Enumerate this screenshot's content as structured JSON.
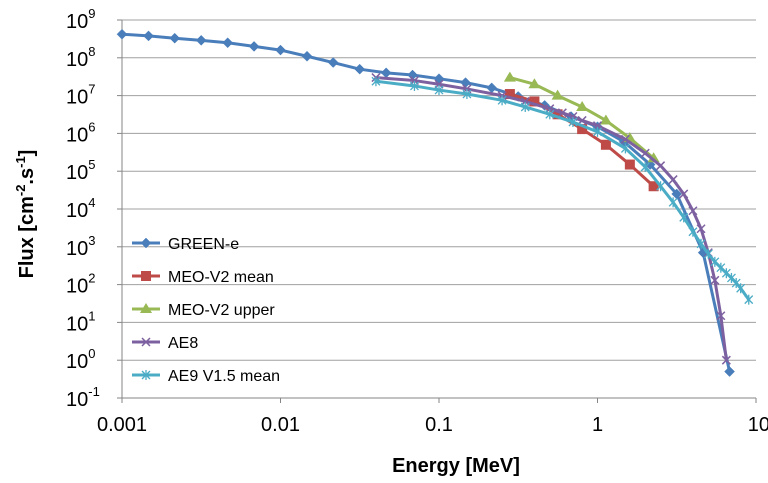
{
  "chart_data": {
    "type": "line",
    "xscale": "log",
    "yscale": "log",
    "xlim": [
      0.001,
      10
    ],
    "ylim": [
      0.1,
      1000000000
    ],
    "xlabel": "Energy [MeV]",
    "ylabel": {
      "base": "Flux [cm",
      "e1": "-2",
      "mid": ".s",
      "e2": "-1",
      "end": "]"
    },
    "grid": "horizontal",
    "legend": "lower-left",
    "x_ticks": [
      {
        "value": 0.001,
        "label": "0.001"
      },
      {
        "value": 0.01,
        "label": "0.01"
      },
      {
        "value": 0.1,
        "label": "0.1"
      },
      {
        "value": 1,
        "label": "1"
      },
      {
        "value": 10,
        "label": "10"
      }
    ],
    "y_ticks": [
      {
        "value": 1000000000,
        "base": "10",
        "exp": "9"
      },
      {
        "value": 100000000,
        "base": "10",
        "exp": "8"
      },
      {
        "value": 10000000,
        "base": "10",
        "exp": "7"
      },
      {
        "value": 1000000,
        "base": "10",
        "exp": "6"
      },
      {
        "value": 100000,
        "base": "10",
        "exp": "5"
      },
      {
        "value": 10000,
        "base": "10",
        "exp": "4"
      },
      {
        "value": 1000,
        "base": "10",
        "exp": "3"
      },
      {
        "value": 100,
        "base": "10",
        "exp": "2"
      },
      {
        "value": 10,
        "base": "10",
        "exp": "1"
      },
      {
        "value": 1,
        "base": "10",
        "exp": "0"
      },
      {
        "value": 0.1,
        "base": "10",
        "exp": "-1"
      }
    ],
    "series": [
      {
        "name": "GREEN-e",
        "color": "#4a7ebb",
        "marker": "diamond",
        "x": [
          0.001,
          0.00147,
          0.00215,
          0.00316,
          0.00464,
          0.00681,
          0.01,
          0.0147,
          0.0215,
          0.0316,
          0.0464,
          0.0681,
          0.1,
          0.147,
          0.215,
          0.316,
          0.464,
          0.681,
          1.0,
          1.47,
          2.15,
          3.16,
          4.64,
          6.81
        ],
        "y": [
          420000000,
          380000000,
          330000000,
          290000000,
          250000000,
          200000000,
          160000000,
          110000000,
          75000000,
          50000000,
          40000000,
          35000000,
          28000000,
          22000000,
          16000000,
          9500000,
          5500000,
          2800000,
          1500000,
          600000,
          150000,
          25000,
          700,
          0.5
        ]
      },
      {
        "name": "MEO-V2 mean",
        "color": "#be4b48",
        "marker": "square",
        "x": [
          0.28,
          0.4,
          0.56,
          0.8,
          1.13,
          1.6,
          2.26
        ],
        "y": [
          11000000,
          7000000,
          3200000,
          1300000,
          500000,
          150000,
          40000
        ]
      },
      {
        "name": "MEO-V2 upper",
        "color": "#98b954",
        "marker": "triangle",
        "x": [
          0.28,
          0.4,
          0.56,
          0.8,
          1.13,
          1.6,
          2.26
        ],
        "y": [
          30000000,
          20000000,
          10000000,
          5000000,
          2200000,
          750000,
          220000
        ]
      },
      {
        "name": "AE8",
        "color": "#7d60a0",
        "marker": "x",
        "x": [
          0.04,
          0.07,
          0.1,
          0.15,
          0.25,
          0.35,
          0.5,
          0.6,
          0.7,
          0.8,
          1.0,
          1.5,
          2.0,
          2.5,
          3.0,
          3.5,
          4.0,
          4.5,
          5.0,
          5.5,
          6.0,
          6.5
        ],
        "y": [
          30000000,
          25000000,
          20000000,
          15000000,
          10000000,
          7000000,
          4500000,
          3500000,
          2800000,
          2200000,
          1600000,
          700000,
          300000,
          140000,
          60000,
          25000,
          9000,
          3000,
          700,
          130,
          15,
          1
        ]
      },
      {
        "name": "AE9 V1.5 mean",
        "color": "#4bacc6",
        "marker": "asterisk",
        "x": [
          0.04,
          0.07,
          0.1,
          0.15,
          0.25,
          0.35,
          0.5,
          0.7,
          1.0,
          1.5,
          2.0,
          2.5,
          3.0,
          3.5,
          4.0,
          4.5,
          5.0,
          5.5,
          6.0,
          6.5,
          7.0,
          7.5,
          8.0,
          9.0
        ],
        "y": [
          24000000,
          18000000,
          14000000,
          11000000,
          7500000,
          5000000,
          3200000,
          2000000,
          1100000,
          400000,
          130000,
          40000,
          15000,
          6000,
          2500,
          1200,
          650,
          400,
          280,
          200,
          150,
          110,
          80,
          40
        ]
      }
    ]
  }
}
